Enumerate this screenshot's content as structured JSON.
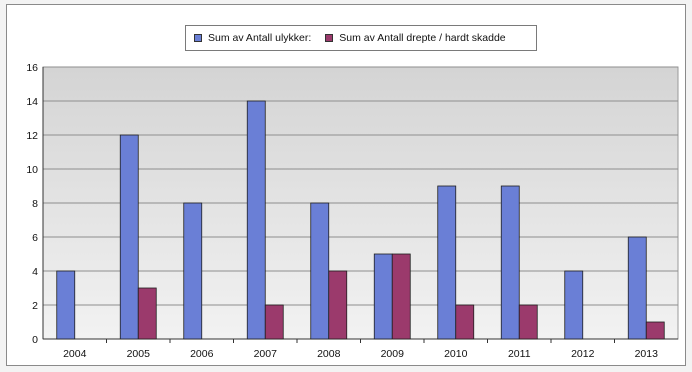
{
  "chart_data": {
    "type": "bar",
    "categories": [
      "2004",
      "2005",
      "2006",
      "2007",
      "2008",
      "2009",
      "2010",
      "2011",
      "2012",
      "2013"
    ],
    "series": [
      {
        "name": "Sum av Antall ulykker:",
        "color": "#6a7fd6",
        "values": [
          4,
          12,
          8,
          14,
          8,
          5,
          9,
          9,
          4,
          6
        ]
      },
      {
        "name": "Sum av Antall drepte / hardt skadde",
        "color": "#9b3a6c",
        "values": [
          0,
          3,
          0,
          2,
          4,
          5,
          2,
          2,
          0,
          1
        ]
      }
    ],
    "ylim": [
      0,
      16
    ],
    "yticks": [
      0,
      2,
      4,
      6,
      8,
      10,
      12,
      14,
      16
    ],
    "grid": true,
    "legend_position": "top",
    "plot_background": "#d9d9d9",
    "title": "",
    "xlabel": "",
    "ylabel": ""
  }
}
